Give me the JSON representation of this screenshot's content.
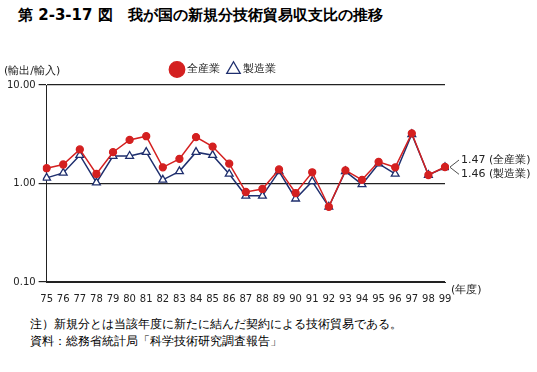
{
  "chart_data": {
    "type": "line",
    "title": "第 2-3-17 図　我が国の新規分技術貿易収支比の推移",
    "y_label": "(輸出/輸入)",
    "x_label": "(年度)",
    "categories": [
      "75",
      "76",
      "77",
      "78",
      "79",
      "80",
      "81",
      "82",
      "83",
      "84",
      "85",
      "86",
      "87",
      "88",
      "89",
      "90",
      "91",
      "92",
      "93",
      "94",
      "95",
      "96",
      "97",
      "98",
      "99"
    ],
    "series": [
      {
        "name": "全産業",
        "color": "#d42020",
        "marker": "circle",
        "values": [
          1.43,
          1.56,
          2.22,
          1.25,
          2.08,
          2.77,
          3.02,
          1.46,
          1.78,
          2.96,
          2.37,
          1.59,
          0.82,
          0.88,
          1.39,
          0.8,
          1.3,
          0.58,
          1.36,
          1.09,
          1.66,
          1.46,
          3.23,
          1.22,
          1.47
        ]
      },
      {
        "name": "製造業",
        "color": "#1f2f6e",
        "marker": "triangle",
        "values": [
          1.14,
          1.28,
          1.94,
          1.02,
          1.9,
          1.9,
          2.08,
          1.09,
          1.33,
          2.08,
          1.94,
          1.25,
          0.75,
          0.75,
          1.33,
          0.7,
          1.05,
          0.58,
          1.33,
          0.98,
          1.59,
          1.25,
          3.16,
          1.22,
          1.46
        ]
      }
    ],
    "annotations": [
      "1.47 (全産業)",
      "1.46 (製造業)"
    ],
    "log": "y",
    "ylim": [
      0.1,
      10
    ],
    "yticks": [
      {
        "value": 0.1,
        "label": "0.10"
      },
      {
        "value": 1,
        "label": "1.00"
      },
      {
        "value": 10,
        "label": "10.00"
      }
    ],
    "grid": true,
    "legend": "top",
    "notes": [
      "注）新規分とは当該年度に新たに結んだ契約による技術貿易である。",
      "資料：総務省統計局「科学技術研究調査報告」"
    ]
  }
}
